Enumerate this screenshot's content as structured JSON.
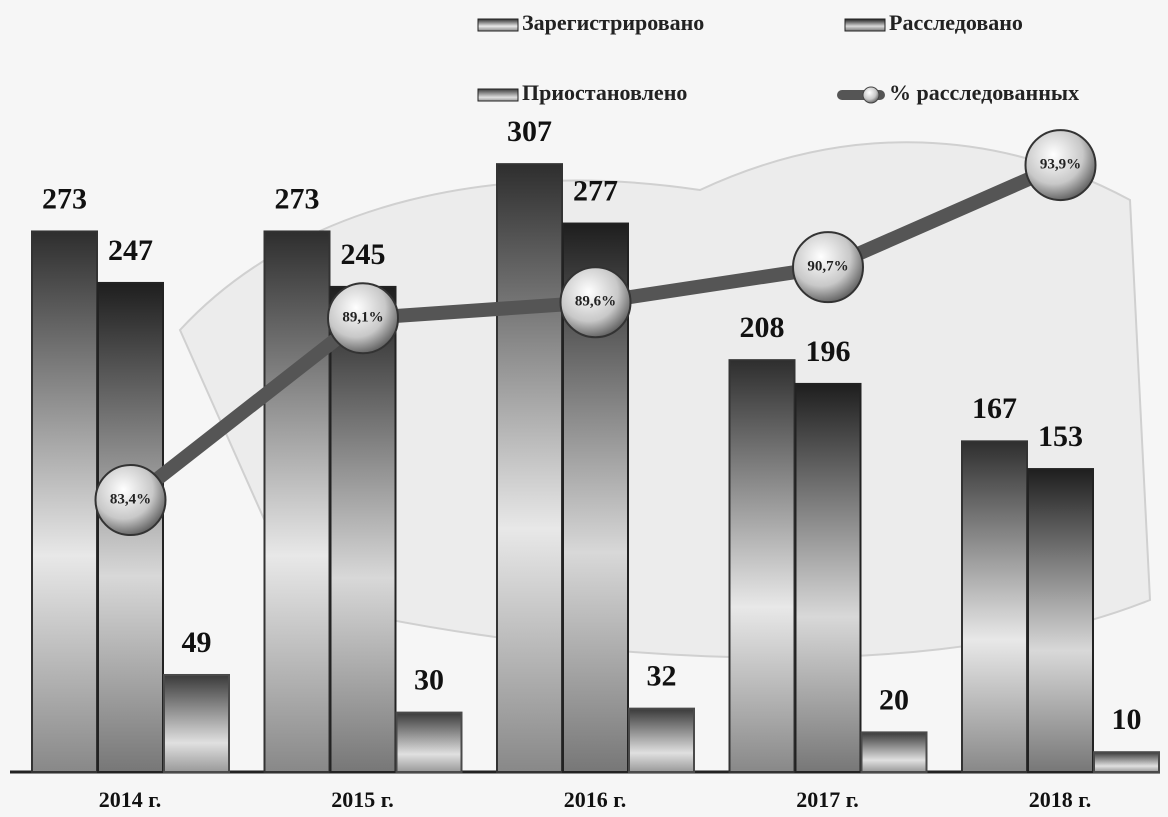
{
  "chart_data": {
    "type": "bar",
    "categories": [
      "2014 г.",
      "2015 г.",
      "2016 г.",
      "2017 г.",
      "2018 г."
    ],
    "series": [
      {
        "name": "Зарегистрировано",
        "color": "#333333",
        "values": [
          273,
          273,
          307,
          208,
          167
        ]
      },
      {
        "name": "Расследовано",
        "color": "#222222",
        "values": [
          247,
          245,
          277,
          196,
          153
        ]
      },
      {
        "name": "Приостановлено",
        "color": "#4a4a4a",
        "values": [
          49,
          30,
          32,
          20,
          10
        ]
      },
      {
        "name": "% расследованных",
        "type": "line",
        "axis": "y2",
        "color": "#555555",
        "values": [
          83.4,
          89.1,
          89.6,
          90.7,
          93.9
        ],
        "value_labels": [
          "83,4%",
          "89,1%",
          "89,6%",
          "90,7%",
          "93,9%"
        ]
      }
    ]
  }
}
